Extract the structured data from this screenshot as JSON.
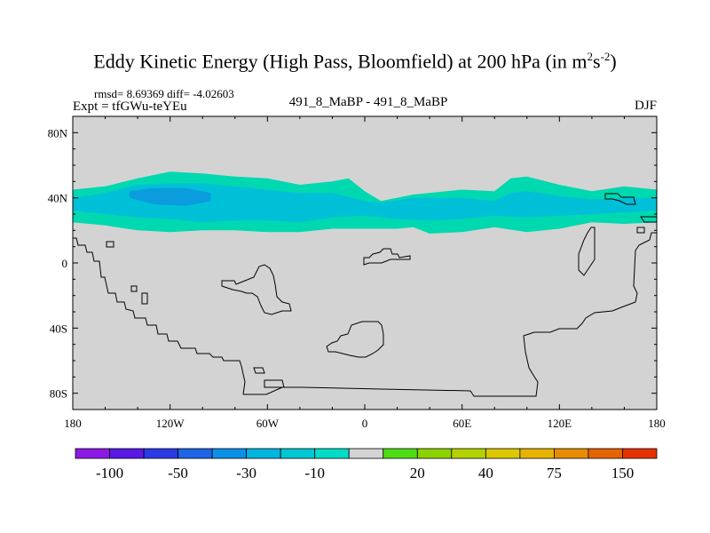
{
  "header": {
    "title_main": "Eddy Kinetic Energy (High Pass, Bloomfield) at 200 hPa (in m",
    "title_sup1": "2",
    "title_s": "s",
    "title_sup2": "-2",
    "title_close": ")",
    "rmsd": "rmsd= 8.69369 diff= -4.02603",
    "expt": "Expt = tfGWu-teYEu",
    "center_label": "491_8_MaBP - 491_8_MaBP",
    "season": "DJF"
  },
  "chart_data": {
    "type": "heatmap",
    "title": "Eddy Kinetic Energy (High Pass, Bloomfield) at 200 hPa (in m2s-2)",
    "projection": "cylindrical equidistant",
    "xlim": [
      -180,
      180
    ],
    "ylim": [
      -90,
      90
    ],
    "x_ticks": [
      {
        "value": -180,
        "label": "180"
      },
      {
        "value": -120,
        "label": "120W"
      },
      {
        "value": -60,
        "label": "60W"
      },
      {
        "value": 0,
        "label": "0"
      },
      {
        "value": 60,
        "label": "60E"
      },
      {
        "value": 120,
        "label": "120E"
      },
      {
        "value": 180,
        "label": "180"
      }
    ],
    "y_ticks": [
      {
        "value": 80,
        "label": "80N"
      },
      {
        "value": 40,
        "label": "40N"
      },
      {
        "value": 0,
        "label": "0"
      },
      {
        "value": -40,
        "label": "40S"
      },
      {
        "value": -80,
        "label": "80S"
      }
    ],
    "background_color": "#d3d3d3",
    "fields": [
      {
        "name": "-30 to -10",
        "color": "#00d8b0",
        "north_edge": [
          [
            -180,
            45
          ],
          [
            -160,
            47
          ],
          [
            -140,
            52
          ],
          [
            -120,
            56
          ],
          [
            -100,
            55
          ],
          [
            -80,
            53
          ],
          [
            -60,
            52
          ],
          [
            -40,
            48
          ],
          [
            -20,
            50
          ],
          [
            -10,
            52
          ],
          [
            0,
            44
          ],
          [
            10,
            38
          ],
          [
            30,
            42
          ],
          [
            60,
            45
          ],
          [
            80,
            44
          ],
          [
            90,
            52
          ],
          [
            100,
            53
          ],
          [
            120,
            48
          ],
          [
            140,
            44
          ],
          [
            160,
            47
          ],
          [
            180,
            45
          ]
        ],
        "south_edge": [
          [
            180,
            25
          ],
          [
            160,
            24
          ],
          [
            140,
            25
          ],
          [
            120,
            21
          ],
          [
            100,
            19
          ],
          [
            80,
            22
          ],
          [
            60,
            19
          ],
          [
            40,
            18
          ],
          [
            30,
            22
          ],
          [
            20,
            21
          ],
          [
            0,
            21
          ],
          [
            -20,
            21
          ],
          [
            -40,
            19
          ],
          [
            -60,
            19
          ],
          [
            -80,
            20
          ],
          [
            -100,
            20
          ],
          [
            -120,
            19
          ],
          [
            -140,
            20
          ],
          [
            -160,
            23
          ],
          [
            -180,
            25
          ]
        ]
      },
      {
        "name": "-50 to -30",
        "color": "#00c0d8",
        "north_edge": [
          [
            -180,
            40
          ],
          [
            -160,
            43
          ],
          [
            -140,
            48
          ],
          [
            -120,
            49
          ],
          [
            -100,
            49
          ],
          [
            -80,
            47
          ],
          [
            -60,
            45
          ],
          [
            -40,
            43
          ],
          [
            -20,
            43
          ],
          [
            0,
            38
          ],
          [
            10,
            37
          ],
          [
            30,
            40
          ],
          [
            60,
            40
          ],
          [
            80,
            38
          ],
          [
            90,
            43
          ],
          [
            100,
            44
          ],
          [
            120,
            41
          ],
          [
            140,
            39
          ],
          [
            160,
            40
          ],
          [
            180,
            40
          ]
        ],
        "south_edge": [
          [
            180,
            32
          ],
          [
            160,
            31
          ],
          [
            140,
            30
          ],
          [
            120,
            29
          ],
          [
            100,
            28
          ],
          [
            80,
            29
          ],
          [
            60,
            27
          ],
          [
            40,
            26
          ],
          [
            20,
            27
          ],
          [
            0,
            29
          ],
          [
            -20,
            28
          ],
          [
            -40,
            25
          ],
          [
            -60,
            26
          ],
          [
            -80,
            26
          ],
          [
            -100,
            25
          ],
          [
            -120,
            27
          ],
          [
            -140,
            28
          ],
          [
            -160,
            30
          ],
          [
            -180,
            32
          ]
        ]
      },
      {
        "name": "-100 to -50",
        "color": "#0a9cdc",
        "north_edge": [
          [
            -145,
            44
          ],
          [
            -130,
            46
          ],
          [
            -110,
            46
          ],
          [
            -95,
            43
          ]
        ],
        "south_edge": [
          [
            -95,
            38
          ],
          [
            -110,
            35
          ],
          [
            -130,
            36
          ],
          [
            -145,
            40
          ]
        ]
      }
    ],
    "colorbar": {
      "colors": [
        "#8c1ae6",
        "#5a18e6",
        "#2a3be6",
        "#1e64e6",
        "#0a90e6",
        "#00b4dc",
        "#00c8d2",
        "#00dcc8",
        "#d3d3d3",
        "#50dc14",
        "#8cd200",
        "#b4d200",
        "#dcc800",
        "#e6b400",
        "#e68c00",
        "#e66400",
        "#e63200"
      ],
      "labels": [
        {
          "boundary": 1,
          "text": "-100"
        },
        {
          "boundary": 3,
          "text": "-50"
        },
        {
          "boundary": 5,
          "text": "-30"
        },
        {
          "boundary": 7,
          "text": "-10"
        },
        {
          "boundary": 10,
          "text": "20"
        },
        {
          "boundary": 12,
          "text": "40"
        },
        {
          "boundary": 14,
          "text": "75"
        },
        {
          "boundary": 16,
          "text": "150"
        }
      ]
    }
  }
}
